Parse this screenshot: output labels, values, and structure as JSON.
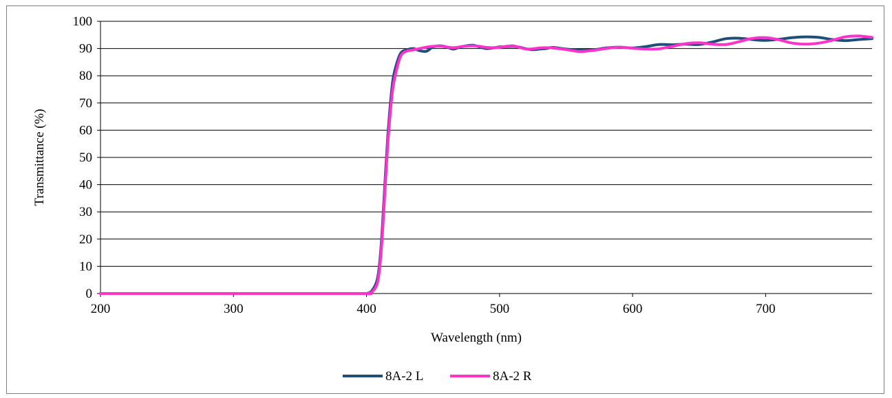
{
  "chart_data": {
    "type": "line",
    "title": "",
    "xlabel": "Wavelength (nm)",
    "ylabel": "Transmittance (%)",
    "xlim": [
      200,
      780
    ],
    "ylim": [
      0,
      100
    ],
    "x_ticks": [
      200,
      300,
      400,
      500,
      600,
      700
    ],
    "x_tick_labels": [
      "200",
      "300",
      "400",
      "500",
      "600",
      "700"
    ],
    "y_ticks": [
      0,
      10,
      20,
      30,
      40,
      50,
      60,
      70,
      80,
      90,
      100
    ],
    "y_tick_labels": [
      "0",
      "10",
      "20",
      "30",
      "40",
      "50",
      "60",
      "70",
      "80",
      "90",
      "100"
    ],
    "grid": "horizontal",
    "legend_position": "bottom",
    "series": [
      {
        "name": "8A-2 L",
        "color": "#1f4e79",
        "x": [
          200,
          300,
          395,
          400,
          404,
          408,
          410,
          412,
          414,
          416,
          418,
          420,
          423,
          426,
          430,
          435,
          440,
          445,
          450,
          455,
          460,
          465,
          470,
          475,
          480,
          485,
          490,
          495,
          500,
          505,
          510,
          515,
          520,
          525,
          530,
          535,
          540,
          550,
          560,
          570,
          580,
          590,
          600,
          610,
          620,
          630,
          640,
          650,
          660,
          670,
          680,
          690,
          700,
          710,
          720,
          730,
          740,
          750,
          760,
          770,
          780
        ],
        "values": [
          0,
          0,
          0,
          0,
          1,
          5,
          12,
          25,
          42,
          58,
          70,
          79,
          85,
          88.5,
          89.5,
          90,
          89.2,
          89,
          90.6,
          91,
          90.6,
          89.8,
          90.5,
          91,
          91.2,
          90.6,
          90,
          90.2,
          90.6,
          90.7,
          90.8,
          90.5,
          89.9,
          89.6,
          89.8,
          90,
          90.4,
          89.8,
          89.4,
          89.5,
          90.2,
          90.5,
          90.2,
          90.7,
          91.5,
          91.4,
          91.6,
          91.5,
          92.4,
          93.6,
          93.8,
          93.3,
          93.0,
          93.4,
          94.0,
          94.3,
          94.1,
          93.3,
          92.9,
          93.3,
          93.6
        ]
      },
      {
        "name": "8A-2 R",
        "color": "#ff33cc",
        "x": [
          200,
          300,
          395,
          400,
          404,
          408,
          410,
          412,
          414,
          416,
          418,
          420,
          423,
          426,
          430,
          435,
          440,
          445,
          450,
          455,
          460,
          465,
          470,
          475,
          480,
          485,
          490,
          495,
          500,
          505,
          510,
          515,
          520,
          525,
          530,
          535,
          540,
          550,
          560,
          570,
          580,
          590,
          600,
          610,
          620,
          630,
          640,
          650,
          660,
          670,
          680,
          690,
          700,
          710,
          720,
          730,
          740,
          750,
          760,
          770,
          780
        ],
        "values": [
          0,
          0,
          0,
          0,
          0.5,
          3.5,
          10,
          22,
          39,
          55,
          67,
          76,
          83,
          87.5,
          89,
          89.5,
          90,
          90.5,
          90.8,
          90.9,
          90.6,
          90.3,
          90.6,
          90.9,
          91,
          90.8,
          90.4,
          90.3,
          90.4,
          90.8,
          91,
          90.4,
          89.8,
          89.9,
          90.2,
          90.3,
          90.2,
          89.6,
          88.9,
          89.3,
          90.0,
          90.5,
          90.1,
          89.8,
          89.9,
          90.8,
          91.8,
          92.1,
          91.6,
          91.5,
          92.5,
          93.7,
          94.0,
          93.2,
          92.0,
          91.6,
          92.0,
          93.0,
          94.3,
          94.6,
          94.1
        ]
      }
    ]
  }
}
